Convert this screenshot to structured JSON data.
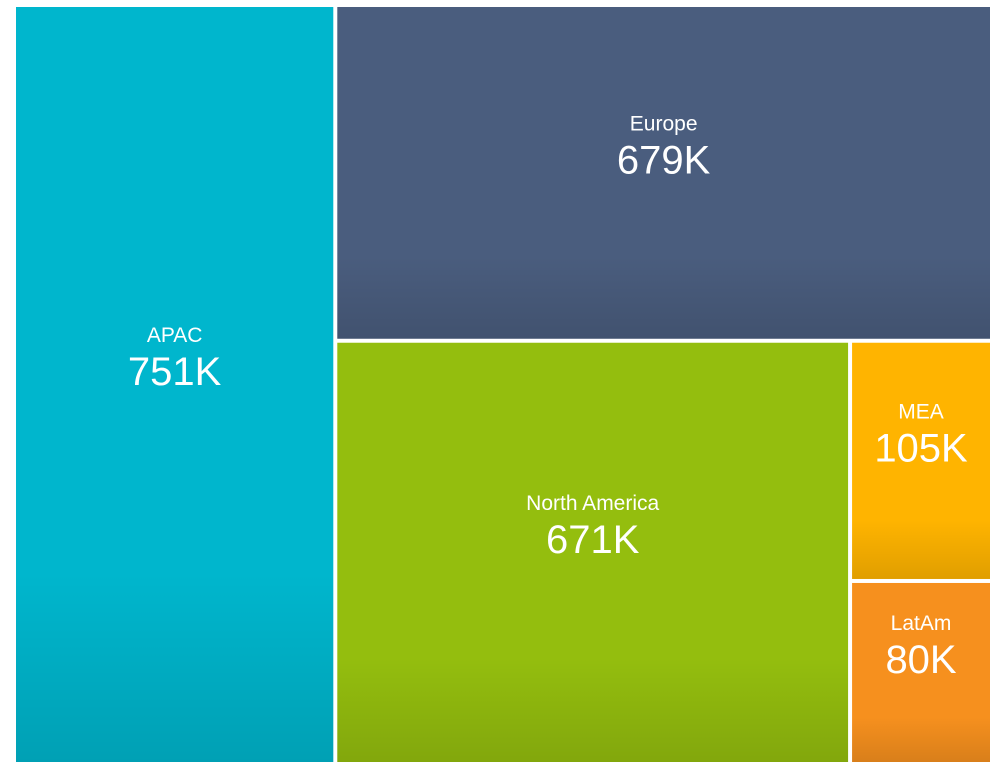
{
  "chart_data": {
    "type": "treemap",
    "categories": [
      "APAC",
      "Europe",
      "North America",
      "MEA",
      "LatAm"
    ],
    "values": [
      751000,
      679000,
      671000,
      105000,
      80000
    ],
    "value_labels": [
      "751K",
      "679K",
      "671K",
      "105K",
      "80K"
    ],
    "colors": [
      "#00b6cd",
      "#4a5d7e",
      "#94be0e",
      "#ffb400",
      "#f6901e"
    ]
  }
}
